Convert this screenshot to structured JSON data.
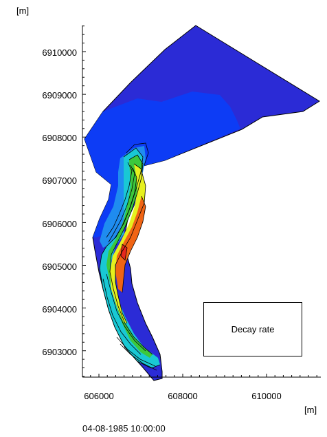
{
  "map": {
    "y_unit": "[m]",
    "x_unit": "[m]",
    "y_ticks": [
      "6910000",
      "6909000",
      "6908000",
      "6907000",
      "6906000",
      "6905000",
      "6904000",
      "6903000"
    ],
    "x_ticks": [
      "606000",
      "608000",
      "610000"
    ],
    "legend_title": "Decay rate",
    "timestamp": "04-08-1985 10:00:00",
    "colors": {
      "deep_blue": "#2b2bd6",
      "blue": "#0d3cf5",
      "light_blue": "#1f8cf0",
      "cyan": "#19c8d4",
      "green": "#3cc83c",
      "yellow": "#e6f01e",
      "orange": "#f06414",
      "red": "#e6281e"
    }
  }
}
